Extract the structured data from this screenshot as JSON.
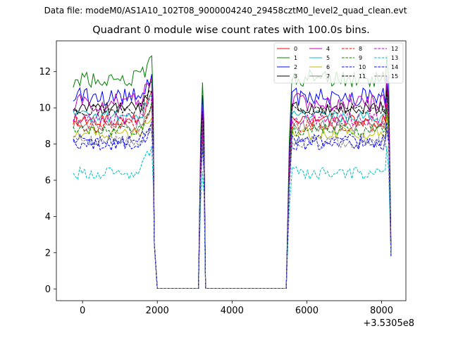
{
  "suptitle": "Data file: modeM0/AS1A10_102T08_9000004240_29458cztM0_level2_quad_clean.evt",
  "chart_data": {
    "type": "line",
    "title": "Quadrant 0 module wise count rates with 100.0s bins.",
    "xlabel": "",
    "ylabel": "",
    "x_offset_label": "+3.5305e8",
    "xlim": [
      -700,
      8650
    ],
    "ylim": [
      -0.65,
      13.7
    ],
    "x_ticks": [
      0,
      2000,
      4000,
      6000,
      8000
    ],
    "x_tick_labels": [
      "0",
      "2000",
      "4000",
      "6000",
      "8000"
    ],
    "y_ticks": [
      0,
      2,
      4,
      6,
      8,
      10,
      12
    ],
    "y_tick_labels": [
      "0",
      "2",
      "4",
      "6",
      "8",
      "10",
      "12"
    ],
    "grid": false,
    "legend_location": "upper right",
    "legend_columns": 4,
    "segments": [
      {
        "start": -250,
        "end": 1850,
        "profile": "active"
      },
      {
        "start": 1850,
        "end": 2000,
        "profile": "drop"
      },
      {
        "start": 2000,
        "end": 3100,
        "profile": "zero"
      },
      {
        "start": 3100,
        "end": 3330,
        "profile": "spike"
      },
      {
        "start": 3330,
        "end": 5450,
        "profile": "zero"
      },
      {
        "start": 5450,
        "end": 5600,
        "profile": "rise"
      },
      {
        "start": 5600,
        "end": 8100,
        "profile": "active"
      },
      {
        "start": 8100,
        "end": 8250,
        "profile": "end-drop"
      }
    ],
    "series": [
      {
        "name": "0",
        "color": "#ff0000",
        "dash": "solid",
        "level": 9.3,
        "peak": 11.0,
        "spike": 9.6,
        "end": 2.0
      },
      {
        "name": "1",
        "color": "#008000",
        "dash": "solid",
        "level": 11.6,
        "peak": 12.9,
        "spike": 11.4,
        "end": 2.6
      },
      {
        "name": "2",
        "color": "#0000ff",
        "dash": "solid",
        "level": 10.6,
        "peak": 11.8,
        "spike": 10.7,
        "end": 2.4
      },
      {
        "name": "3",
        "color": "#000000",
        "dash": "solid",
        "level": 10.0,
        "peak": 11.3,
        "spike": 9.9,
        "end": 2.2
      },
      {
        "name": "4",
        "color": "#bf00bf",
        "dash": "solid",
        "level": 10.3,
        "peak": 11.6,
        "spike": 10.2,
        "end": 2.3
      },
      {
        "name": "5",
        "color": "#00bfbf",
        "dash": "solid",
        "level": 9.5,
        "peak": 10.6,
        "spike": 9.4,
        "end": 2.1
      },
      {
        "name": "6",
        "color": "#bfbf00",
        "dash": "solid",
        "level": 8.6,
        "peak": 9.6,
        "spike": 8.5,
        "end": 1.9
      },
      {
        "name": "7",
        "color": "#808080",
        "dash": "solid",
        "level": 9.0,
        "peak": 10.2,
        "spike": 8.9,
        "end": 1.9
      },
      {
        "name": "8",
        "color": "#ff0000",
        "dash": "dashed",
        "level": 9.0,
        "peak": 10.2,
        "spike": 8.8,
        "end": 1.9
      },
      {
        "name": "9",
        "color": "#008000",
        "dash": "dashed",
        "level": 8.8,
        "peak": 10.0,
        "spike": 8.6,
        "end": 1.9
      },
      {
        "name": "10",
        "color": "#0000ff",
        "dash": "dashed",
        "level": 8.0,
        "peak": 8.8,
        "spike": 7.9,
        "end": 1.8
      },
      {
        "name": "11",
        "color": "#000000",
        "dash": "dashed",
        "level": 9.9,
        "peak": 11.0,
        "spike": 9.8,
        "end": 2.1
      },
      {
        "name": "12",
        "color": "#bf00bf",
        "dash": "dashed",
        "level": 9.4,
        "peak": 10.5,
        "spike": 9.2,
        "end": 2.0
      },
      {
        "name": "13",
        "color": "#00bfbf",
        "dash": "dashed",
        "level": 6.4,
        "peak": 7.9,
        "spike": 6.5,
        "end": 1.8
      },
      {
        "name": "14",
        "color": "#0000ff",
        "dash": "dashed",
        "level": 8.2,
        "peak": 9.2,
        "spike": 8.1,
        "end": 1.8
      },
      {
        "name": "15",
        "color": "#808080",
        "dash": "dashed",
        "level": 8.1,
        "peak": 9.0,
        "spike": 8.0,
        "end": 1.8
      }
    ]
  }
}
